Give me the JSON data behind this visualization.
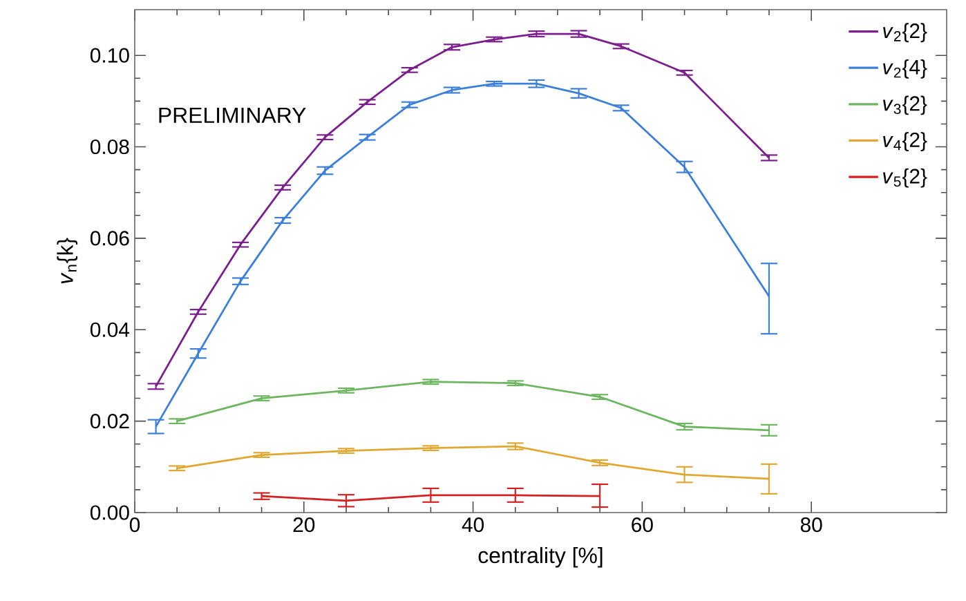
{
  "chart_data": {
    "type": "line",
    "xlabel": "centrality [%]",
    "ylabel": "*v*$_{n}${k}",
    "annotations": [
      "PRELIMINARY"
    ],
    "xlim": [
      0,
      96
    ],
    "ylim": [
      0,
      0.11
    ],
    "xticks": [
      0,
      20,
      40,
      60,
      80
    ],
    "yticks": [
      {
        "value": 0,
        "label": "0.00"
      },
      {
        "value": 0.02,
        "label": "0.02"
      },
      {
        "value": 0.04,
        "label": "0.04"
      },
      {
        "value": 0.06,
        "label": "0.06"
      },
      {
        "value": 0.08,
        "label": "0.08"
      },
      {
        "value": 0.1,
        "label": "0.10"
      }
    ],
    "legend": "top right",
    "marker": "none",
    "line_style": "solid",
    "series": [
      {
        "name": "*v*$_{2}${2}",
        "color": "#7b1f8f",
        "x": [
          2.5,
          7.5,
          12.5,
          17.5,
          22.5,
          27.5,
          32.5,
          37.5,
          42.5,
          47.5,
          52.5,
          57.5,
          65,
          75
        ],
        "values": [
          0.0276,
          0.0439,
          0.0586,
          0.0711,
          0.0821,
          0.0898,
          0.0968,
          0.1018,
          0.1035,
          0.1047,
          0.1047,
          0.102,
          0.0962,
          0.0776
        ],
        "errors": [
          0.0006,
          0.0005,
          0.0005,
          0.0005,
          0.0005,
          0.0005,
          0.0005,
          0.0006,
          0.0005,
          0.0006,
          0.0007,
          0.0005,
          0.0005,
          0.0006
        ]
      },
      {
        "name": "*v*$_{2}${4}",
        "color": "#3b7fd9",
        "x": [
          2.5,
          7.5,
          12.5,
          17.5,
          22.5,
          27.5,
          32.5,
          37.5,
          42.5,
          47.5,
          52.5,
          57.5,
          65,
          75
        ],
        "values": [
          0.0188,
          0.0348,
          0.0506,
          0.0639,
          0.0748,
          0.0821,
          0.0892,
          0.0924,
          0.0938,
          0.0938,
          0.0917,
          0.0885,
          0.0756,
          0.0473
        ],
        "errors": [
          0.0015,
          0.001,
          0.0007,
          0.0006,
          0.0008,
          0.0006,
          0.0006,
          0.0006,
          0.0005,
          0.0008,
          0.001,
          0.0006,
          0.0012,
          [
            0.0391,
            0.0545
          ]
        ]
      },
      {
        "name": "*v*$_{3}${2}",
        "color": "#6db660",
        "x": [
          5,
          15,
          25,
          35,
          45,
          55,
          65,
          75
        ],
        "values": [
          0.02,
          0.025,
          0.0267,
          0.0286,
          0.0283,
          0.0253,
          0.0188,
          0.018
        ],
        "errors": [
          0.0005,
          0.0005,
          0.0005,
          0.0005,
          0.0005,
          0.0005,
          0.0007,
          0.0012
        ]
      },
      {
        "name": "*v*$_{4}${2}",
        "color": "#e0a830",
        "x": [
          5,
          15,
          25,
          35,
          45,
          55,
          65,
          75
        ],
        "values": [
          0.0097,
          0.0126,
          0.0135,
          0.0141,
          0.0145,
          0.0109,
          0.0083,
          0.0074
        ],
        "errors": [
          0.0005,
          0.0005,
          0.0005,
          0.0005,
          0.0007,
          0.0006,
          0.0017,
          [
            0.0041,
            0.0106
          ]
        ]
      },
      {
        "name": "*v*$_{5}${2}",
        "color": "#d62020",
        "x": [
          15,
          25,
          35,
          45,
          55
        ],
        "values": [
          0.0036,
          0.0026,
          0.0038,
          0.0038,
          0.0036
        ],
        "errors": [
          0.0007,
          0.0013,
          0.0015,
          0.0015,
          [
            0.0012,
            0.0062
          ]
        ]
      }
    ]
  }
}
